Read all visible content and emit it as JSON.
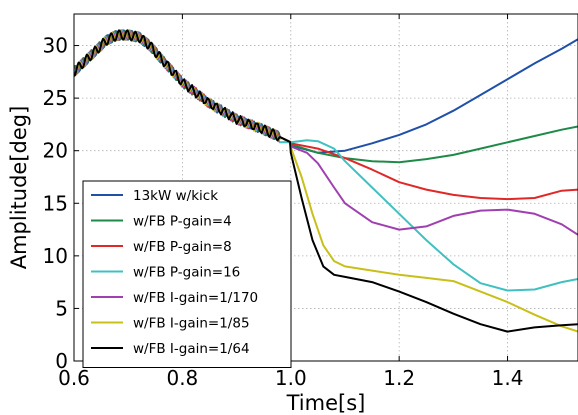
{
  "chart_data": {
    "type": "line",
    "xlabel": "Time[s]",
    "ylabel": "Amplitude[deg]",
    "xlim": [
      0.6,
      1.53
    ],
    "ylim": [
      0,
      33
    ],
    "xticks": [
      0.6,
      0.8,
      1.0,
      1.2,
      1.4
    ],
    "xtick_labels": [
      "0.6",
      "0.8",
      "1.0",
      "1.2",
      "1.4"
    ],
    "yticks": [
      0,
      5,
      10,
      15,
      20,
      25,
      30
    ],
    "ytick_labels": [
      "0",
      "5",
      "10",
      "15",
      "20",
      "25",
      "30"
    ],
    "grid": true,
    "legend_position": "lower-left",
    "series": [
      {
        "name": "13kW w/kick",
        "color": "#2050a8",
        "x": [
          1.0,
          1.05,
          1.1,
          1.15,
          1.2,
          1.25,
          1.3,
          1.35,
          1.4,
          1.45,
          1.5,
          1.53
        ],
        "y": [
          20.5,
          19.8,
          20.0,
          20.7,
          21.5,
          22.5,
          23.8,
          25.3,
          26.8,
          28.3,
          29.7,
          30.6
        ]
      },
      {
        "name": "w/FB P-gain=4",
        "color": "#1e8a48",
        "x": [
          1.0,
          1.05,
          1.1,
          1.15,
          1.2,
          1.25,
          1.3,
          1.35,
          1.4,
          1.45,
          1.5,
          1.53
        ],
        "y": [
          20.6,
          19.8,
          19.3,
          19.0,
          18.9,
          19.2,
          19.6,
          20.2,
          20.8,
          21.4,
          22.0,
          22.3
        ]
      },
      {
        "name": "w/FB P-gain=8",
        "color": "#e02828",
        "x": [
          1.0,
          1.05,
          1.1,
          1.15,
          1.2,
          1.25,
          1.3,
          1.35,
          1.4,
          1.45,
          1.5,
          1.53
        ],
        "y": [
          20.7,
          20.2,
          19.3,
          18.2,
          17.0,
          16.3,
          15.8,
          15.5,
          15.4,
          15.5,
          16.2,
          16.3
        ]
      },
      {
        "name": "w/FB P-gain=16",
        "color": "#40c0c0",
        "x": [
          0.98,
          1.0,
          1.03,
          1.05,
          1.08,
          1.1,
          1.15,
          1.2,
          1.25,
          1.3,
          1.35,
          1.4,
          1.45,
          1.5,
          1.53
        ],
        "y": [
          20.8,
          20.8,
          21.0,
          20.9,
          20.2,
          19.0,
          16.5,
          14.0,
          11.5,
          9.2,
          7.4,
          6.7,
          6.8,
          7.5,
          7.8
        ]
      },
      {
        "name": "w/FB I-gain=1/170",
        "color": "#a040b0",
        "x": [
          1.0,
          1.03,
          1.05,
          1.08,
          1.1,
          1.15,
          1.2,
          1.25,
          1.3,
          1.35,
          1.4,
          1.45,
          1.5,
          1.53
        ],
        "y": [
          20.4,
          19.8,
          18.8,
          16.5,
          15.0,
          13.2,
          12.5,
          12.8,
          13.8,
          14.3,
          14.4,
          14.0,
          13.0,
          12.0
        ]
      },
      {
        "name": "w/FB I-gain=1/85",
        "color": "#c8c018",
        "x": [
          1.0,
          1.02,
          1.04,
          1.06,
          1.08,
          1.1,
          1.15,
          1.2,
          1.25,
          1.3,
          1.35,
          1.4,
          1.45,
          1.5,
          1.53
        ],
        "y": [
          20.3,
          17.5,
          14.0,
          11.0,
          9.5,
          9.0,
          8.6,
          8.2,
          7.9,
          7.6,
          6.6,
          5.6,
          4.4,
          3.3,
          2.8
        ]
      },
      {
        "name": "w/FB I-gain=1/64",
        "color": "#000000",
        "x": [
          1.0,
          1.02,
          1.04,
          1.06,
          1.08,
          1.1,
          1.15,
          1.2,
          1.25,
          1.3,
          1.35,
          1.4,
          1.45,
          1.5,
          1.53
        ],
        "y": [
          19.8,
          15.5,
          11.5,
          9.0,
          8.2,
          8.0,
          7.5,
          6.6,
          5.6,
          4.5,
          3.5,
          2.8,
          3.2,
          3.4,
          3.5
        ]
      }
    ],
    "common_prefix": {
      "x": [
        0.6,
        0.63,
        0.66,
        0.68,
        0.7,
        0.72,
        0.74,
        0.76,
        0.8,
        0.85,
        0.9,
        0.95,
        0.98,
        1.0
      ],
      "y": [
        27.5,
        29.0,
        30.5,
        31.0,
        31.0,
        30.8,
        30.0,
        28.8,
        26.5,
        24.5,
        23.0,
        22.0,
        21.3,
        20.8
      ]
    }
  }
}
